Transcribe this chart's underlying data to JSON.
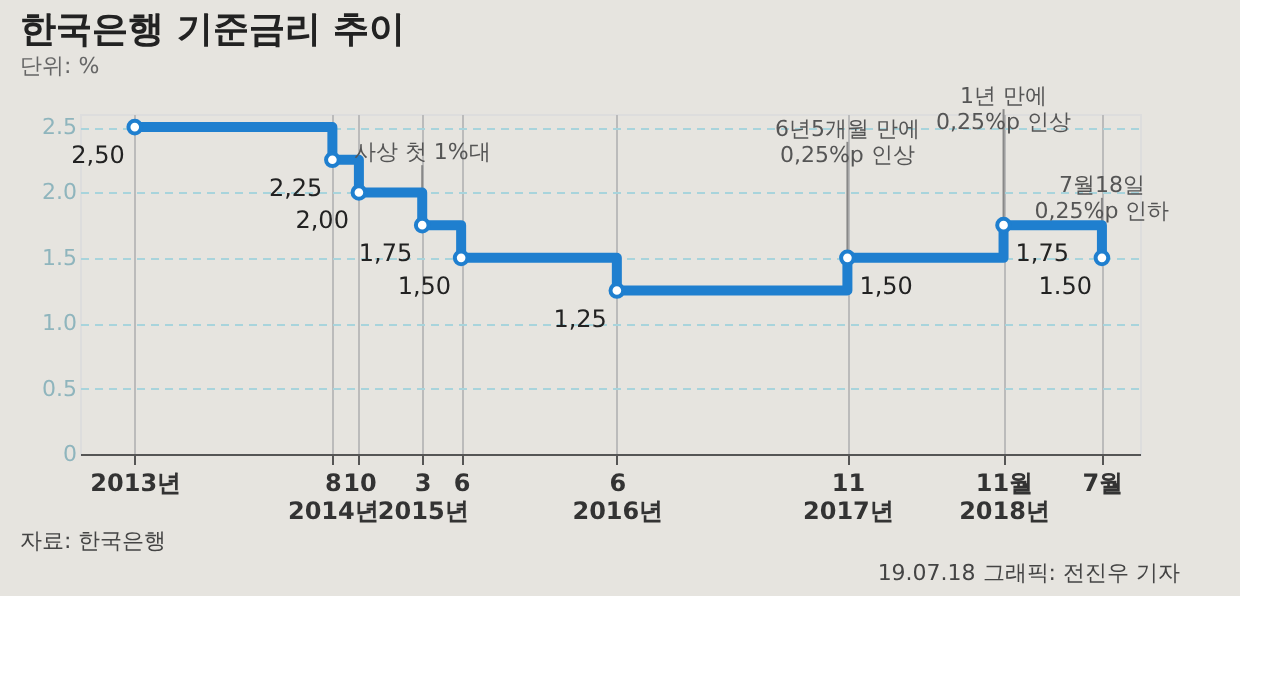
{
  "chart_data": {
    "type": "step",
    "title": "한국은행 기준금리 추이",
    "subtitle": "단위: %",
    "x": [
      "2013-05-09",
      "2014-08-14",
      "2014-10-15",
      "2015-03-12",
      "2015-06-11",
      "2016-06-09",
      "2017-11-30",
      "2018-11-30",
      "2019-07-18"
    ],
    "series": [
      {
        "color": "#1f7fcf",
        "values": [
          2.5,
          2.25,
          2.0,
          1.75,
          1.5,
          1.25,
          1.5,
          1.75,
          1.5
        ],
        "value_labels": [
          "2,50",
          "2,25",
          "2,00",
          "1,75",
          "1,50",
          "1,25",
          "1,50",
          "1,75",
          "1.50"
        ]
      }
    ],
    "xlim": [
      "2013-01-01",
      "2019-10-15"
    ],
    "xticks": [
      {
        "value": "2013-05-09",
        "label": "2013년"
      },
      {
        "value": "2014-08-14",
        "label": "8\n2014년"
      },
      {
        "value": "2014-10-15",
        "label": "10"
      },
      {
        "value": "2015-03-12",
        "label": "3\n2015년"
      },
      {
        "value": "2015-06-11",
        "label": "6"
      },
      {
        "value": "2016-06-09",
        "label": "6\n2016년"
      },
      {
        "value": "2017-11-30",
        "label": "11\n2017년"
      },
      {
        "value": "2018-11-30",
        "label": "11월\n2018년"
      },
      {
        "value": "2019-07-18",
        "label": "7월"
      }
    ],
    "ylim": [
      0,
      2.6
    ],
    "yticks": [
      0,
      {
        "value": 0.5,
        "label": "0.5"
      },
      {
        "value": 1,
        "label": "1.0"
      },
      {
        "value": 1.5,
        "label": "1.5"
      },
      {
        "value": 2,
        "label": "2.0"
      },
      {
        "value": 2.5,
        "label": "2.5"
      }
    ],
    "grid": true,
    "marker": "circle",
    "annotations": [
      {
        "text": "사상 첫 1%대",
        "x": "2015-03-12",
        "y": 1.75
      },
      {
        "text": "6년5개월 만에\n0,25%p 인상",
        "x": "2017-11-30",
        "y": 1.5
      },
      {
        "text": "1년 만에\n0,25%p 인상",
        "x": "2018-11-30",
        "y": 1.75
      },
      {
        "text": "7월18일\n0,25%p 인하",
        "x": "2019-07-18",
        "y": 1.5
      },
      "자료: 한국은행",
      "19.07.18 그래픽: 전진우 기자"
    ]
  }
}
